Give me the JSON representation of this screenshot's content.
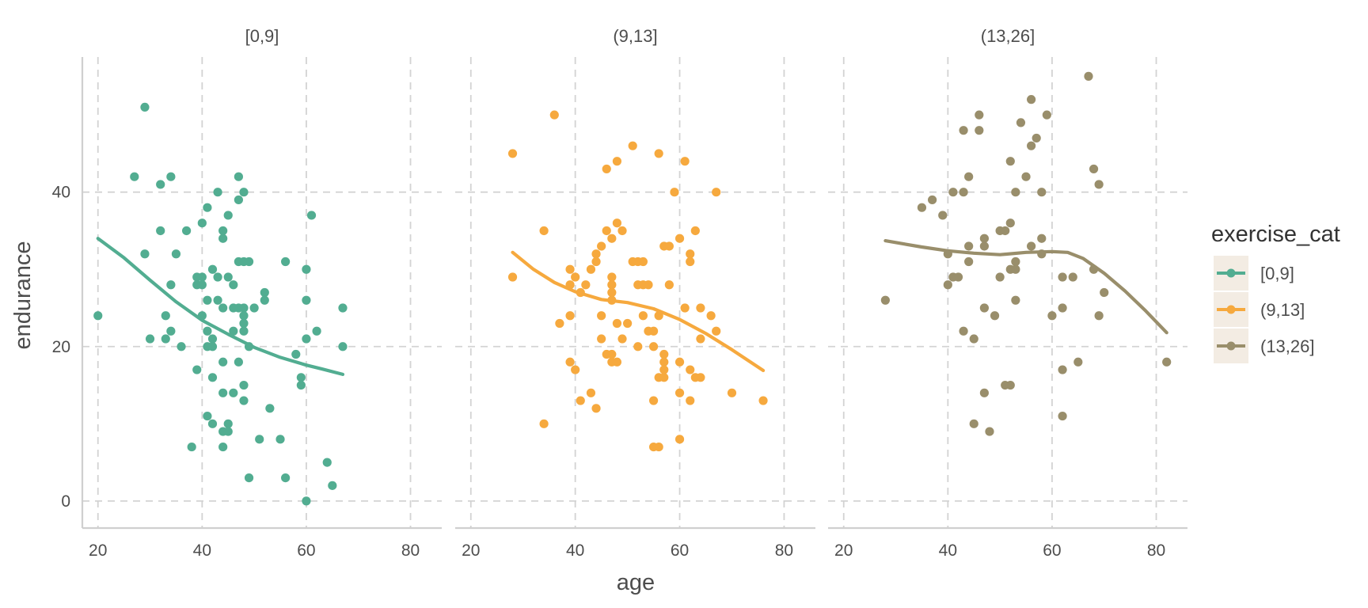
{
  "chart_data": {
    "type": "scatter",
    "xlabel": "age",
    "ylabel": "endurance",
    "xlim": [
      17,
      86
    ],
    "ylim": [
      -3.5,
      57.5
    ],
    "x_ticks": [
      20,
      40,
      60,
      80
    ],
    "y_ticks": [
      0,
      20,
      40
    ],
    "grid": true,
    "grid_style": "dashed",
    "legend_position": "right",
    "legend_title": "exercise_cat",
    "series": [
      {
        "name": "[0,9]",
        "color": "#52AD91",
        "points": [
          [
            20,
            24
          ],
          [
            27,
            42
          ],
          [
            29,
            51
          ],
          [
            29,
            32
          ],
          [
            30,
            21
          ],
          [
            32,
            35
          ],
          [
            32,
            41
          ],
          [
            33,
            24
          ],
          [
            33,
            21
          ],
          [
            34,
            22
          ],
          [
            34,
            42
          ],
          [
            34,
            28
          ],
          [
            35,
            32
          ],
          [
            36,
            20
          ],
          [
            37,
            35
          ],
          [
            38,
            7
          ],
          [
            39,
            17
          ],
          [
            39,
            28
          ],
          [
            39,
            29
          ],
          [
            40,
            28
          ],
          [
            40,
            29
          ],
          [
            40,
            36
          ],
          [
            40,
            24
          ],
          [
            41,
            38
          ],
          [
            41,
            22
          ],
          [
            41,
            26
          ],
          [
            41,
            20
          ],
          [
            41,
            11
          ],
          [
            42,
            30
          ],
          [
            42,
            16
          ],
          [
            42,
            21
          ],
          [
            42,
            20
          ],
          [
            42,
            10
          ],
          [
            43,
            40
          ],
          [
            43,
            26
          ],
          [
            43,
            29
          ],
          [
            44,
            34
          ],
          [
            44,
            35
          ],
          [
            44,
            25
          ],
          [
            44,
            18
          ],
          [
            44,
            14
          ],
          [
            44,
            9
          ],
          [
            44,
            7
          ],
          [
            45,
            37
          ],
          [
            45,
            29
          ],
          [
            45,
            10
          ],
          [
            45,
            9
          ],
          [
            46,
            28
          ],
          [
            46,
            25
          ],
          [
            46,
            22
          ],
          [
            46,
            14
          ],
          [
            47,
            42
          ],
          [
            47,
            39
          ],
          [
            47,
            31
          ],
          [
            47,
            25
          ],
          [
            47,
            18
          ],
          [
            48,
            31
          ],
          [
            48,
            40
          ],
          [
            48,
            25
          ],
          [
            48,
            24
          ],
          [
            48,
            23
          ],
          [
            48,
            22
          ],
          [
            48,
            15
          ],
          [
            48,
            13
          ],
          [
            49,
            31
          ],
          [
            49,
            20
          ],
          [
            49,
            3
          ],
          [
            50,
            25
          ],
          [
            51,
            8
          ],
          [
            52,
            27
          ],
          [
            52,
            26
          ],
          [
            53,
            12
          ],
          [
            55,
            8
          ],
          [
            56,
            31
          ],
          [
            56,
            3
          ],
          [
            58,
            19
          ],
          [
            59,
            16
          ],
          [
            59,
            15
          ],
          [
            60,
            30
          ],
          [
            60,
            26
          ],
          [
            60,
            21
          ],
          [
            60,
            0
          ],
          [
            61,
            37
          ],
          [
            62,
            22
          ],
          [
            64,
            5
          ],
          [
            65,
            2
          ],
          [
            67,
            25
          ],
          [
            67,
            20
          ]
        ],
        "trend": [
          [
            20,
            34
          ],
          [
            25,
            31.5
          ],
          [
            30,
            28.6
          ],
          [
            35,
            25.8
          ],
          [
            40,
            23.4
          ],
          [
            45,
            21.6
          ],
          [
            50,
            19.9
          ],
          [
            55,
            18.6
          ],
          [
            60,
            17.6
          ],
          [
            63,
            17.1
          ],
          [
            67,
            16.4
          ]
        ]
      },
      {
        "name": "(9,13]",
        "color": "#F6A93E",
        "points": [
          [
            28,
            45
          ],
          [
            28,
            29
          ],
          [
            34,
            35
          ],
          [
            34,
            10
          ],
          [
            36,
            50
          ],
          [
            37,
            23
          ],
          [
            39,
            30
          ],
          [
            39,
            28
          ],
          [
            39,
            24
          ],
          [
            39,
            18
          ],
          [
            40,
            29
          ],
          [
            40,
            17
          ],
          [
            41,
            27
          ],
          [
            41,
            13
          ],
          [
            42,
            28
          ],
          [
            43,
            30
          ],
          [
            43,
            14
          ],
          [
            44,
            32
          ],
          [
            44,
            31
          ],
          [
            44,
            12
          ],
          [
            45,
            33
          ],
          [
            45,
            24
          ],
          [
            45,
            21
          ],
          [
            46,
            43
          ],
          [
            46,
            35
          ],
          [
            46,
            19
          ],
          [
            47,
            34
          ],
          [
            47,
            29
          ],
          [
            47,
            28
          ],
          [
            47,
            27
          ],
          [
            47,
            26
          ],
          [
            47,
            19
          ],
          [
            47,
            18
          ],
          [
            48,
            44
          ],
          [
            48,
            36
          ],
          [
            48,
            23
          ],
          [
            48,
            18
          ],
          [
            49,
            35
          ],
          [
            49,
            21
          ],
          [
            50,
            23
          ],
          [
            51,
            31
          ],
          [
            51,
            46
          ],
          [
            52,
            31
          ],
          [
            52,
            28
          ],
          [
            52,
            20
          ],
          [
            53,
            31
          ],
          [
            53,
            28
          ],
          [
            53,
            24
          ],
          [
            54,
            28
          ],
          [
            54,
            22
          ],
          [
            55,
            22
          ],
          [
            55,
            20
          ],
          [
            55,
            13
          ],
          [
            55,
            7
          ],
          [
            56,
            45
          ],
          [
            56,
            24
          ],
          [
            56,
            16
          ],
          [
            56,
            7
          ],
          [
            57,
            33
          ],
          [
            57,
            19
          ],
          [
            57,
            18
          ],
          [
            57,
            17
          ],
          [
            57,
            16
          ],
          [
            58,
            33
          ],
          [
            58,
            28
          ],
          [
            59,
            40
          ],
          [
            60,
            34
          ],
          [
            60,
            18
          ],
          [
            60,
            14
          ],
          [
            60,
            8
          ],
          [
            61,
            44
          ],
          [
            61,
            25
          ],
          [
            62,
            32
          ],
          [
            62,
            31
          ],
          [
            62,
            17
          ],
          [
            62,
            13
          ],
          [
            63,
            35
          ],
          [
            63,
            16
          ],
          [
            64,
            25
          ],
          [
            64,
            21
          ],
          [
            64,
            16
          ],
          [
            66,
            24
          ],
          [
            67,
            40
          ],
          [
            67,
            22
          ],
          [
            70,
            14
          ],
          [
            76,
            13
          ]
        ],
        "trend": [
          [
            28,
            32.2
          ],
          [
            32,
            30
          ],
          [
            36,
            28.3
          ],
          [
            40,
            27.1
          ],
          [
            45,
            26.1
          ],
          [
            50,
            25.7
          ],
          [
            55,
            24.9
          ],
          [
            60,
            23.5
          ],
          [
            65,
            21.7
          ],
          [
            70,
            19.6
          ],
          [
            76,
            16.9
          ]
        ]
      },
      {
        "name": "(13,26]",
        "color": "#998E6B",
        "points": [
          [
            28,
            26
          ],
          [
            35,
            38
          ],
          [
            37,
            39
          ],
          [
            39,
            37
          ],
          [
            40,
            32
          ],
          [
            40,
            28
          ],
          [
            41,
            40
          ],
          [
            41,
            29
          ],
          [
            42,
            29
          ],
          [
            43,
            48
          ],
          [
            43,
            40
          ],
          [
            43,
            22
          ],
          [
            44,
            42
          ],
          [
            44,
            33
          ],
          [
            44,
            31
          ],
          [
            45,
            21
          ],
          [
            45,
            10
          ],
          [
            46,
            50
          ],
          [
            46,
            48
          ],
          [
            47,
            34
          ],
          [
            47,
            33
          ],
          [
            47,
            25
          ],
          [
            47,
            14
          ],
          [
            48,
            9
          ],
          [
            49,
            24
          ],
          [
            50,
            35
          ],
          [
            50,
            29
          ],
          [
            51,
            35
          ],
          [
            51,
            15
          ],
          [
            52,
            44
          ],
          [
            52,
            36
          ],
          [
            52,
            30
          ],
          [
            52,
            15
          ],
          [
            53,
            40
          ],
          [
            53,
            31
          ],
          [
            53,
            30
          ],
          [
            53,
            26
          ],
          [
            54,
            49
          ],
          [
            55,
            42
          ],
          [
            56,
            52
          ],
          [
            56,
            46
          ],
          [
            56,
            33
          ],
          [
            57,
            47
          ],
          [
            58,
            40
          ],
          [
            58,
            34
          ],
          [
            58,
            32
          ],
          [
            59,
            50
          ],
          [
            60,
            24
          ],
          [
            62,
            29
          ],
          [
            62,
            25
          ],
          [
            62,
            17
          ],
          [
            62,
            11
          ],
          [
            64,
            29
          ],
          [
            65,
            18
          ],
          [
            67,
            55
          ],
          [
            68,
            43
          ],
          [
            68,
            30
          ],
          [
            69,
            41
          ],
          [
            69,
            24
          ],
          [
            70,
            27
          ],
          [
            82,
            18
          ]
        ],
        "trend": [
          [
            28,
            33.7
          ],
          [
            35,
            32.9
          ],
          [
            40,
            32.4
          ],
          [
            45,
            32.1
          ],
          [
            50,
            31.9
          ],
          [
            55,
            32.2
          ],
          [
            60,
            32.3
          ],
          [
            63,
            32.2
          ],
          [
            66,
            31.4
          ],
          [
            70,
            29.5
          ],
          [
            74,
            27.2
          ],
          [
            78,
            24.6
          ],
          [
            82,
            21.8
          ]
        ]
      }
    ]
  }
}
